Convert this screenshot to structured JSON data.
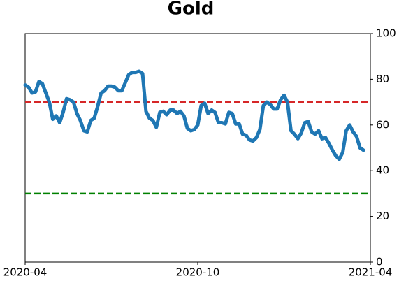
{
  "chart_data": {
    "type": "line",
    "title": "Gold",
    "values": [
      77.5,
      76.5,
      74,
      74.5,
      79,
      78,
      74,
      70,
      62.5,
      64,
      61,
      65.5,
      71.5,
      71,
      70,
      65,
      62,
      57.5,
      57,
      62,
      63,
      68,
      74,
      75,
      77,
      77,
      76.5,
      75,
      75,
      78.5,
      82,
      83,
      83,
      83.5,
      82.5,
      66,
      63,
      62,
      59,
      65.5,
      66,
      64.5,
      66.5,
      66.5,
      65,
      66,
      64,
      58.5,
      57.5,
      58,
      60,
      68.5,
      69.5,
      65,
      66.5,
      65.5,
      61,
      61,
      60.5,
      65.5,
      65,
      60.5,
      60.5,
      56,
      55.5,
      53.5,
      53,
      54.5,
      58,
      68.5,
      70,
      69,
      67,
      67,
      71,
      73,
      70,
      57.5,
      56,
      54,
      56.5,
      61,
      61.5,
      57,
      56,
      57.5,
      54,
      54.5,
      52,
      49,
      46.5,
      45,
      48,
      57.5,
      60,
      57,
      55,
      50,
      49
    ],
    "color": "#1f77b4",
    "xlim": [
      0,
      100
    ],
    "xticks": [
      {
        "value": 0,
        "label": "2020-04"
      },
      {
        "value": 50,
        "label": "2020-10"
      },
      {
        "value": 100,
        "label": "2021-04"
      }
    ],
    "ylim": [
      0,
      100
    ],
    "yticks": [
      0,
      20,
      40,
      60,
      80,
      100
    ],
    "y_axis_side": "right",
    "hlines": [
      {
        "value": 70,
        "color": "#d62728"
      },
      {
        "value": 30,
        "color": "#008000"
      }
    ]
  }
}
